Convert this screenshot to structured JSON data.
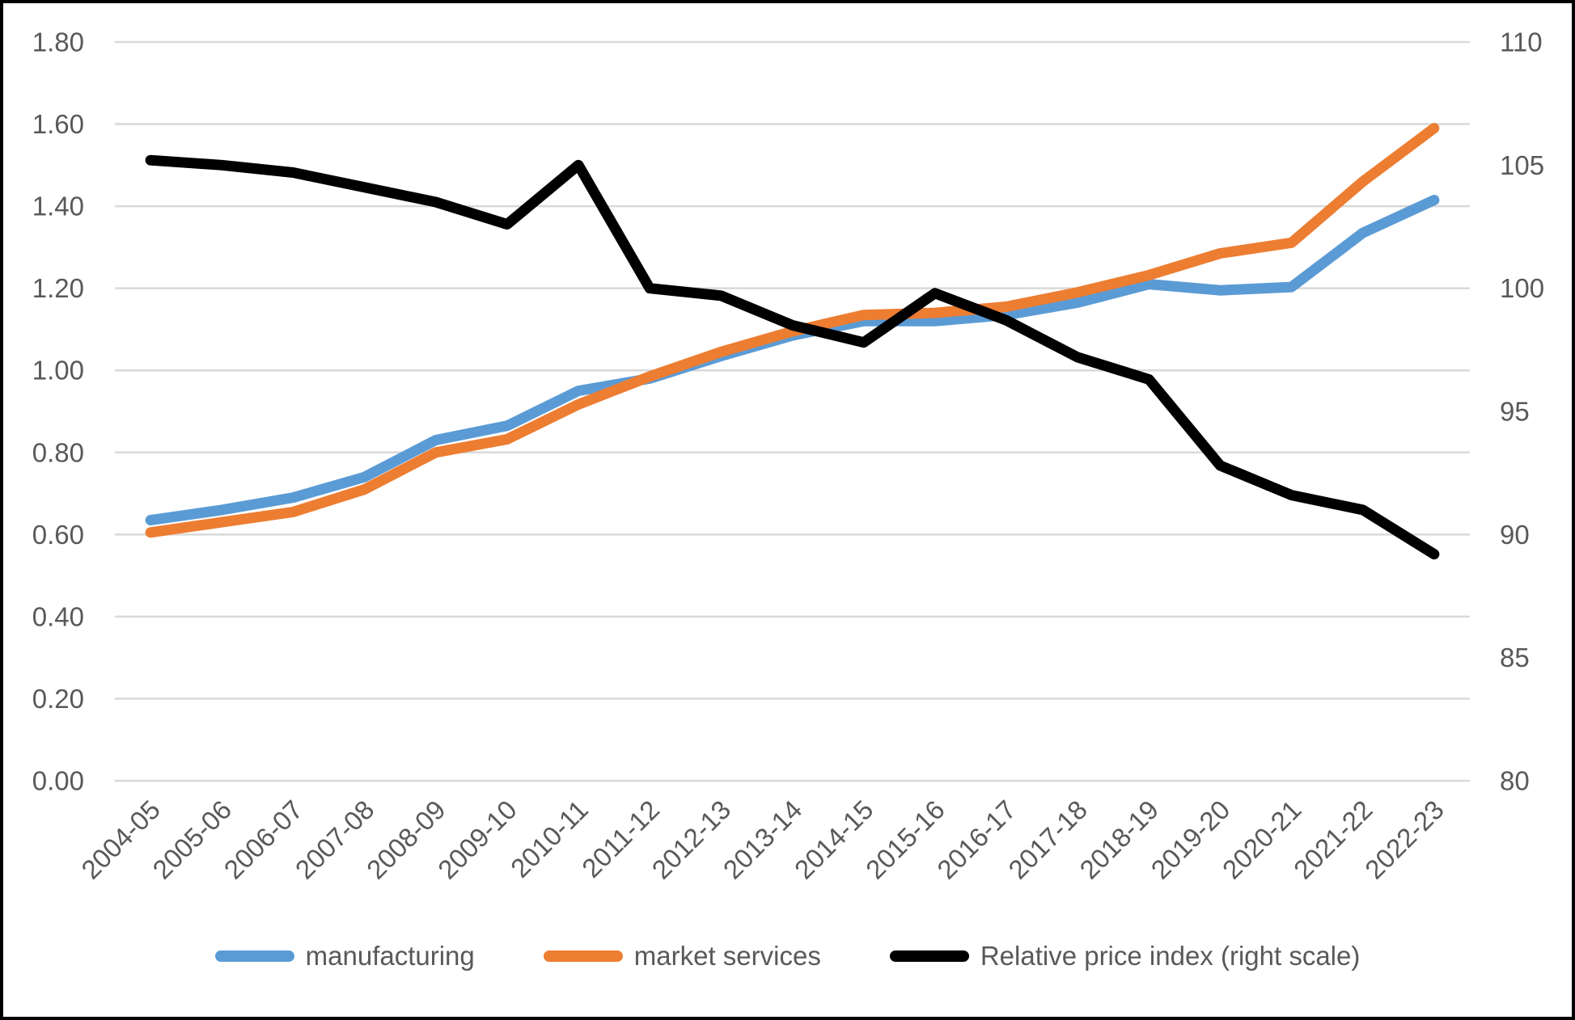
{
  "chart_data": {
    "type": "line",
    "title": "",
    "categories": [
      "2004-05",
      "2005-06",
      "2006-07",
      "2007-08",
      "2008-09",
      "2009-10",
      "2010-11",
      "2011-12",
      "2012-13",
      "2013-14",
      "2014-15",
      "2015-16",
      "2016-17",
      "2017-18",
      "2018-19",
      "2019-20",
      "2020-21",
      "2021-22",
      "2022-23"
    ],
    "series": [
      {
        "name": "manufacturing",
        "axis": "left",
        "color": "#5B9BD5",
        "values": [
          0.635,
          0.66,
          0.69,
          0.74,
          0.83,
          0.865,
          0.95,
          0.98,
          1.035,
          1.085,
          1.12,
          1.12,
          1.135,
          1.165,
          1.21,
          1.195,
          1.203,
          1.335,
          1.415
        ]
      },
      {
        "name": "market services",
        "axis": "left",
        "color": "#ED7D31",
        "values": [
          0.605,
          0.63,
          0.655,
          0.71,
          0.8,
          0.832,
          0.917,
          0.985,
          1.045,
          1.095,
          1.135,
          1.14,
          1.155,
          1.19,
          1.232,
          1.285,
          1.311,
          1.46,
          1.59
        ]
      },
      {
        "name": "Relative price index (right scale)",
        "axis": "right",
        "color": "#000000",
        "values": [
          105.2,
          105.0,
          104.7,
          104.1,
          103.5,
          102.6,
          105.0,
          100.0,
          99.7,
          98.5,
          97.8,
          99.8,
          98.7,
          97.2,
          96.3,
          92.8,
          91.6,
          91.0,
          89.2
        ]
      }
    ],
    "left_axis": {
      "min": 0.0,
      "max": 1.8,
      "step": 0.2,
      "tick_labels": [
        "0.00",
        "0.20",
        "0.40",
        "0.60",
        "0.80",
        "1.00",
        "1.20",
        "1.40",
        "1.60",
        "1.80"
      ]
    },
    "right_axis": {
      "min": 80,
      "max": 110,
      "step": 5,
      "tick_labels": [
        "80",
        "85",
        "90",
        "95",
        "100",
        "105",
        "110"
      ]
    },
    "grid": true,
    "legend_position": "bottom",
    "x_label_rotation_deg": -45
  },
  "style_tokens": {
    "gridline_color": "#D9D9D9",
    "axis_text_color": "#595959",
    "background_color": "#FFFFFF",
    "frame_border_color": "#000000"
  }
}
